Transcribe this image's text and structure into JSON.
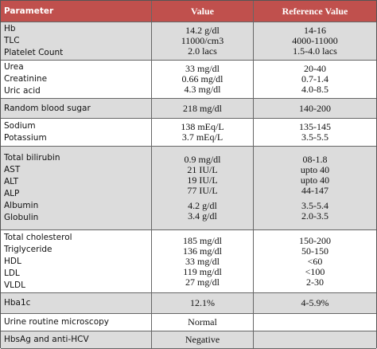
{
  "table": {
    "header": [
      "Parameter",
      "Value",
      "Reference Value"
    ],
    "rows": [
      [
        [
          "Hb",
          "TLC",
          "Platelet Count"
        ],
        [
          "14.2 g/dl",
          "11000/cm3",
          "2.0 lacs"
        ],
        [
          "14-16",
          "4000-11000",
          "1.5-4.0 lacs"
        ]
      ],
      [
        [
          "Urea",
          "Creatinine",
          "Uric acid"
        ],
        [
          "33 mg/dl",
          "0.66 mg/dl",
          "4.3 mg/dl"
        ],
        [
          "20-40",
          "0.7-1.4",
          "4.0-8.5"
        ]
      ],
      [
        [
          "Random blood sugar"
        ],
        [
          "218 mg/dl"
        ],
        [
          "140-200"
        ]
      ],
      [
        [
          "Sodium",
          "Potassium"
        ],
        [
          "138 mEq/L",
          "3.7 mEq/L"
        ],
        [
          "135-145",
          "3.5-5.5"
        ]
      ],
      [
        [
          "Total bilirubin",
          "AST",
          "ALT",
          "ALP",
          "Albumin",
          "Globulin"
        ],
        [
          "0.9 mg/dl",
          "21 IU/L",
          "19 IU/L",
          "77 IU/L",
          "4.2 g/dl",
          "3.4 g/dl"
        ],
        [
          "08-1.8",
          "upto 40",
          "upto 40",
          "44-147",
          "3.5-5.4",
          "2.0-3.5"
        ]
      ],
      [
        [
          "Total cholesterol",
          "Triglyceride",
          "HDL",
          "LDL",
          "VLDL"
        ],
        [
          "185 mg/dl",
          "136 mg/dl",
          "33 mg/dl",
          "119 mg/dl",
          "27 mg/dl"
        ],
        [
          "150-200",
          "50-150",
          "<60",
          "<100",
          "2-30"
        ]
      ],
      [
        [
          "Hba1c"
        ],
        [
          "12.1%"
        ],
        [
          "4-5.9%"
        ]
      ],
      [
        [
          "Urine routine microscopy"
        ],
        [
          "Normal"
        ],
        []
      ],
      [
        [
          "HbsAg and anti-HCV"
        ],
        [
          "Negative"
        ],
        []
      ]
    ]
  }
}
